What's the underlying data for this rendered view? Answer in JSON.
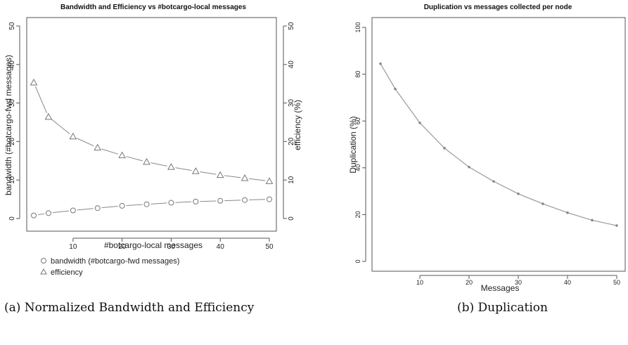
{
  "figure": {
    "caption_a": "(a) Normalized Bandwidth and Efficiency",
    "caption_b": "(b) Duplication"
  },
  "chart_data": [
    {
      "type": "line",
      "title": "Bandwidth and Efficiency vs #botcargo-local messages",
      "xlabel": "#botcargo-local messages",
      "ylabel": "bandwidth (#botcargo-fwd messages)",
      "y2label": "efficiency (%)",
      "x": [
        2,
        5,
        10,
        15,
        20,
        25,
        30,
        35,
        40,
        45,
        50
      ],
      "xticks": [
        10,
        20,
        30,
        40,
        50
      ],
      "xlim": [
        2,
        50
      ],
      "ylim": [
        0,
        50
      ],
      "yticks": [
        0,
        10,
        20,
        30,
        40,
        50
      ],
      "y2lim": [
        0,
        50
      ],
      "y2ticks": [
        0,
        10,
        20,
        30,
        40,
        50
      ],
      "grid": false,
      "legend_position": "bottom-left",
      "series": [
        {
          "name": "bandwidth (#botcargo-fwd messages)",
          "marker": "circle",
          "axis": "left",
          "color": "#888888",
          "values": [
            0.8,
            1.4,
            2.1,
            2.7,
            3.3,
            3.7,
            4.1,
            4.4,
            4.6,
            4.8,
            5.0
          ]
        },
        {
          "name": "efficiency",
          "marker": "triangle",
          "axis": "right",
          "color": "#888888",
          "values": [
            35.3,
            26.4,
            21.3,
            18.4,
            16.4,
            14.7,
            13.4,
            12.3,
            11.3,
            10.5,
            9.7
          ]
        }
      ]
    },
    {
      "type": "line",
      "title": "Duplication vs messages collected per node",
      "xlabel": "Messages",
      "ylabel": "Duplication (%)",
      "x": [
        2,
        5,
        10,
        15,
        20,
        25,
        30,
        35,
        40,
        45,
        50
      ],
      "xticks": [
        10,
        20,
        30,
        40,
        50
      ],
      "xlim": [
        2,
        50
      ],
      "ylim": [
        0,
        100
      ],
      "yticks": [
        0,
        20,
        40,
        60,
        80,
        100
      ],
      "grid": false,
      "series": [
        {
          "marker": "point",
          "color": "#999999",
          "values": [
            84.5,
            73.7,
            59.2,
            48.4,
            40.3,
            34.2,
            28.9,
            24.6,
            20.8,
            17.6,
            15.3
          ]
        }
      ]
    }
  ]
}
